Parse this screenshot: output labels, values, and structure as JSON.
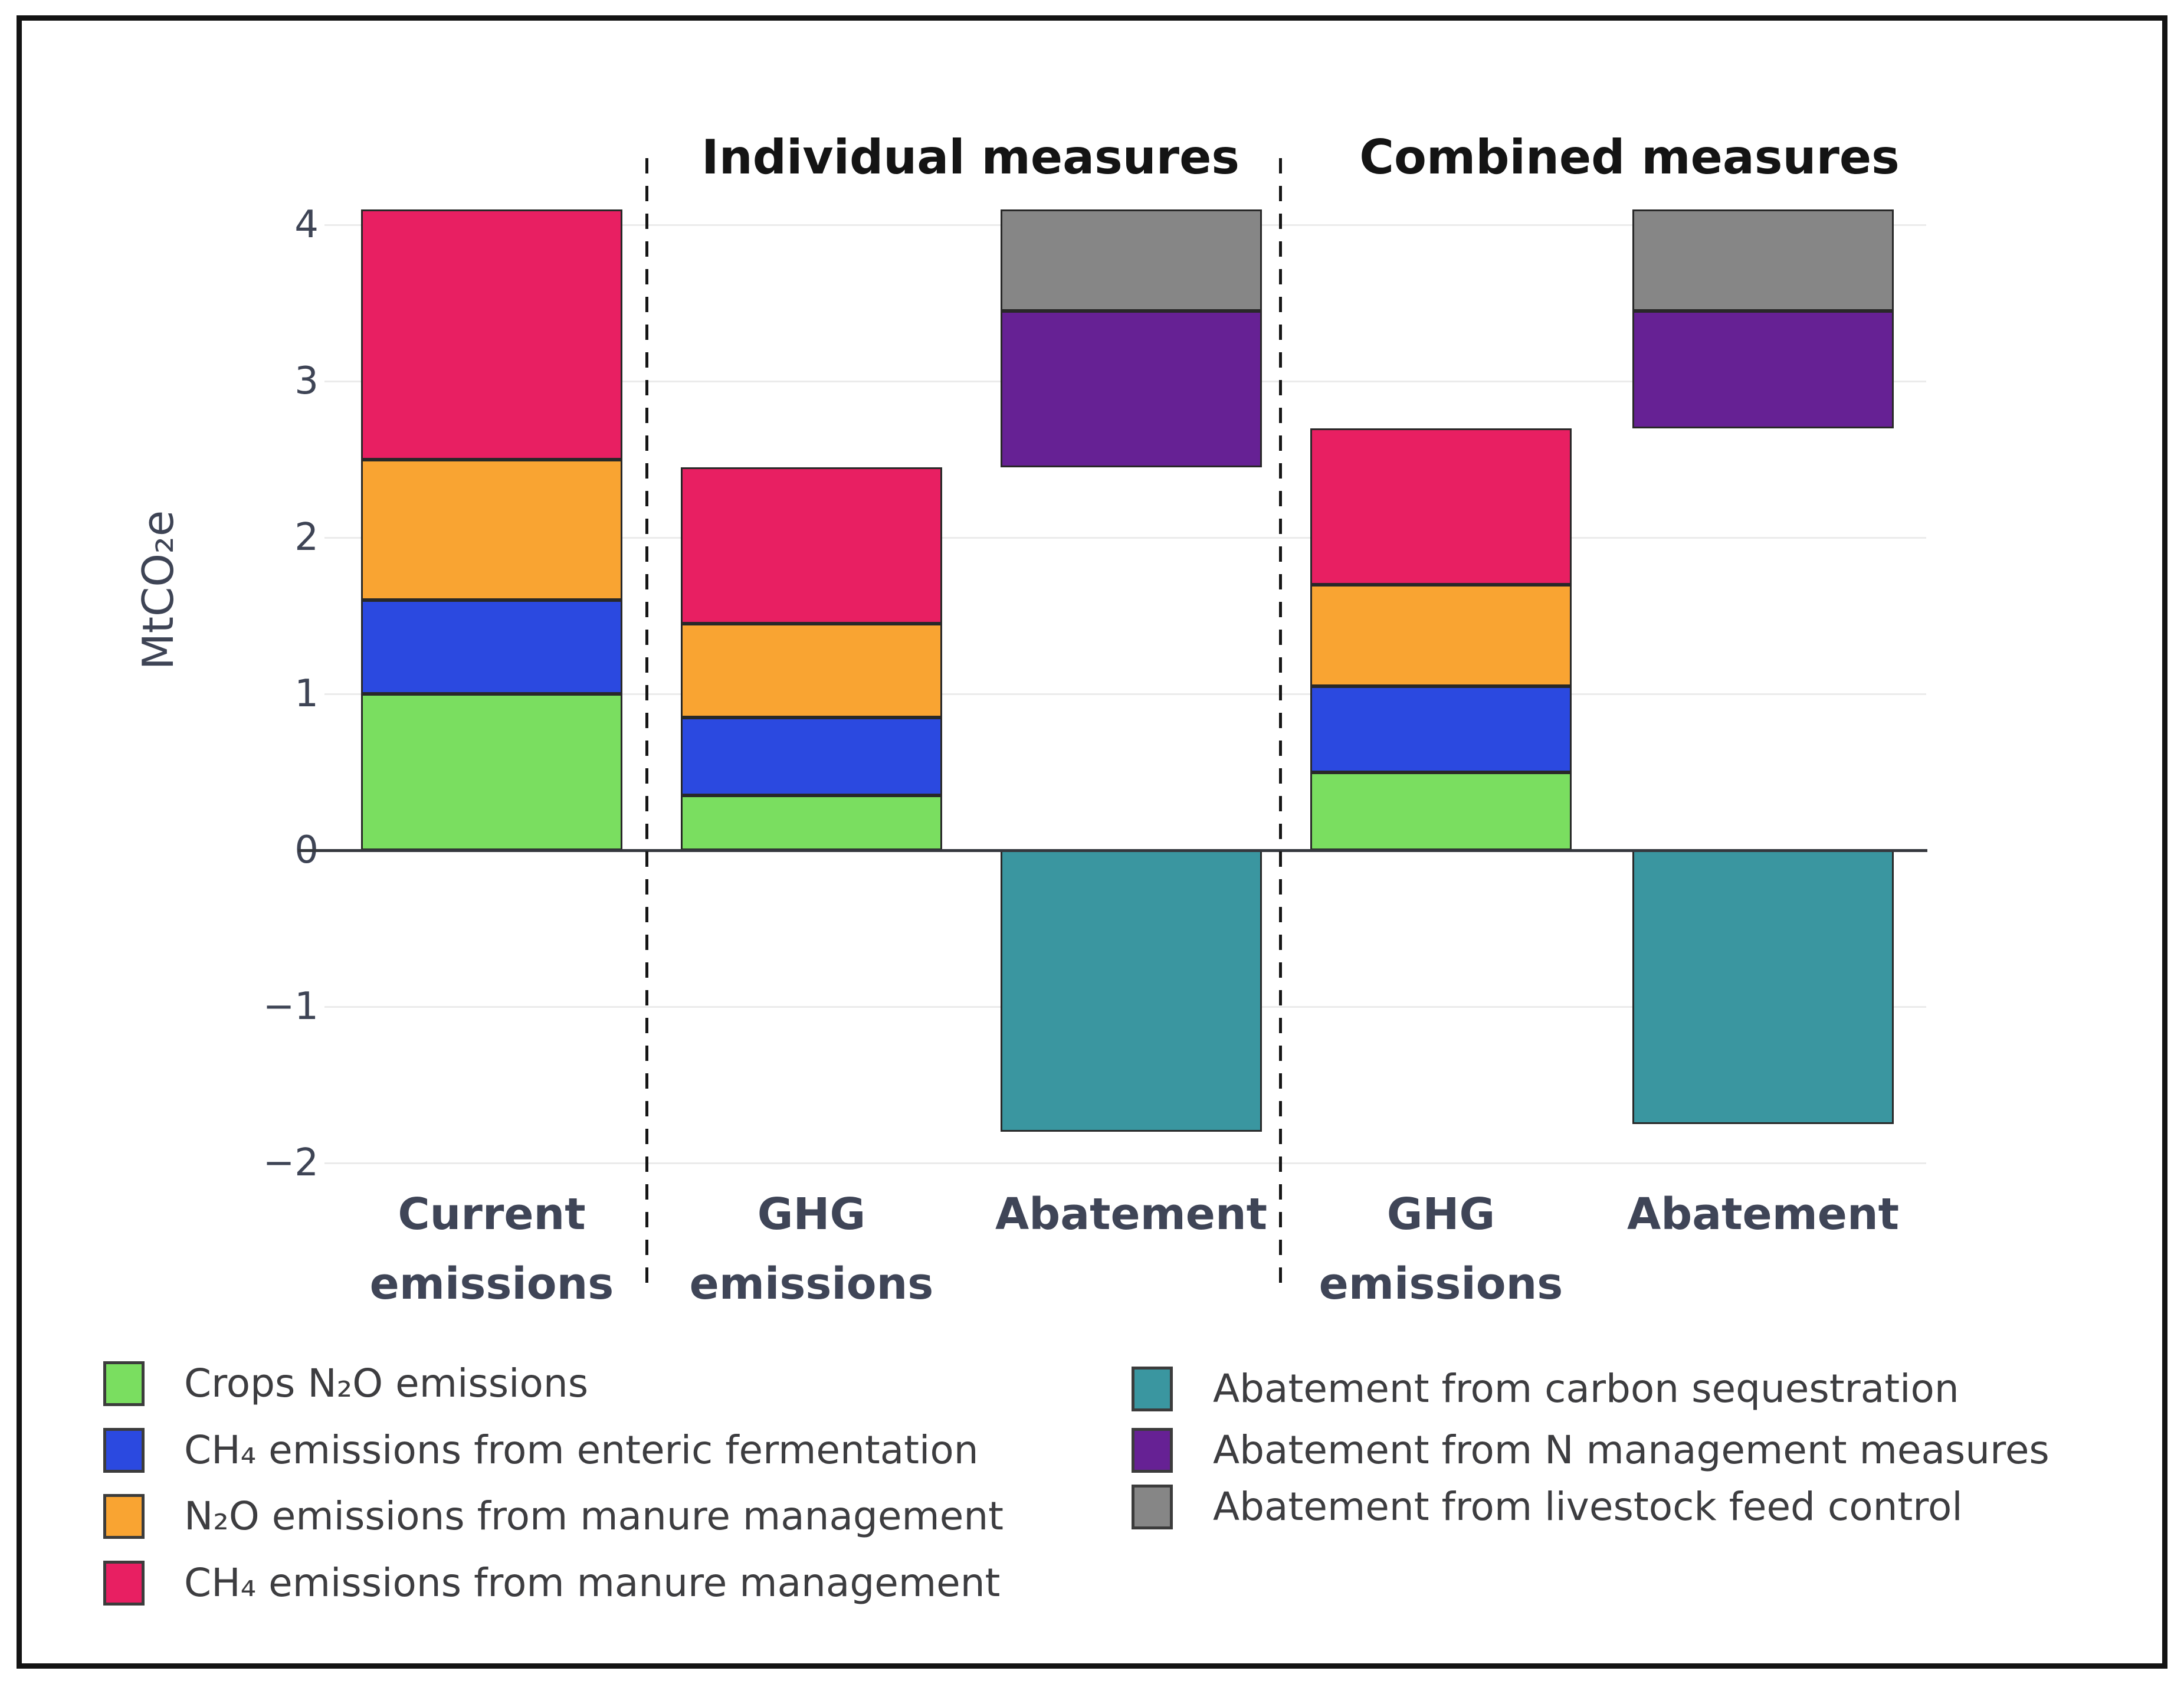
{
  "chart_data": {
    "type": "bar",
    "stacked": true,
    "waterfall": true,
    "title": "",
    "section_titles": [
      "Individual measures",
      "Combined measures"
    ],
    "ylabel": "MtCO₂e",
    "ylim": [
      -2.45,
      4.35
    ],
    "grid": true,
    "legend_position": "bottom",
    "yticks": [
      {
        "value": 4,
        "label": "4"
      },
      {
        "value": 3,
        "label": "3"
      },
      {
        "value": 2,
        "label": "2"
      },
      {
        "value": 1,
        "label": "1"
      },
      {
        "value": 0,
        "label": "0"
      },
      {
        "value": -1,
        "label": "−1"
      },
      {
        "value": -2,
        "label": "−2"
      }
    ],
    "series": {
      "crops_n2o": {
        "label": "Crops N₂O emissions",
        "color": "#7ade60"
      },
      "ch4_enteric": {
        "label": "CH₄ emissions from enteric fermentation",
        "color": "#2b49e0"
      },
      "n2o_manure": {
        "label": "N₂O emissions from manure management",
        "color": "#f9a432"
      },
      "ch4_manure": {
        "label": "CH₄ emissions from manure management",
        "color": "#e81f62"
      },
      "abate_carbon": {
        "label": "Abatement from carbon sequestration",
        "color": "#3a96a0"
      },
      "abate_n": {
        "label": "Abatement from N management measures",
        "color": "#662194"
      },
      "abate_feed": {
        "label": "Abatement from livestock feed control",
        "color": "#868686"
      }
    },
    "bars": [
      {
        "category_lines": [
          "Current",
          "emissions"
        ],
        "group": "current",
        "total": 4.1,
        "segments": [
          {
            "series": "crops_n2o",
            "from": 0,
            "to": 1.0
          },
          {
            "series": "ch4_enteric",
            "from": 1.0,
            "to": 1.6
          },
          {
            "series": "n2o_manure",
            "from": 1.6,
            "to": 2.5
          },
          {
            "series": "ch4_manure",
            "from": 2.5,
            "to": 4.1
          }
        ]
      },
      {
        "category_lines": [
          "GHG",
          "emissions"
        ],
        "group": "individual",
        "total": 2.45,
        "segments": [
          {
            "series": "crops_n2o",
            "from": 0,
            "to": 0.35
          },
          {
            "series": "ch4_enteric",
            "from": 0.35,
            "to": 0.85
          },
          {
            "series": "n2o_manure",
            "from": 0.85,
            "to": 1.45
          },
          {
            "series": "ch4_manure",
            "from": 1.45,
            "to": 2.45
          }
        ]
      },
      {
        "category_lines": [
          "Abatement"
        ],
        "group": "individual",
        "segments": [
          {
            "series": "abate_carbon",
            "from": 0,
            "to": -1.8
          },
          {
            "series": "abate_n",
            "from": 2.45,
            "to": 3.45
          },
          {
            "series": "abate_feed",
            "from": 3.45,
            "to": 4.1
          }
        ]
      },
      {
        "category_lines": [
          "GHG",
          "emissions"
        ],
        "group": "combined",
        "total": 2.7,
        "segments": [
          {
            "series": "crops_n2o",
            "from": 0,
            "to": 0.5
          },
          {
            "series": "ch4_enteric",
            "from": 0.5,
            "to": 1.05
          },
          {
            "series": "n2o_manure",
            "from": 1.05,
            "to": 1.7
          },
          {
            "series": "ch4_manure",
            "from": 1.7,
            "to": 2.7
          }
        ]
      },
      {
        "category_lines": [
          "Abatement"
        ],
        "group": "combined",
        "segments": [
          {
            "series": "abate_carbon",
            "from": 0,
            "to": -1.75
          },
          {
            "series": "abate_n",
            "from": 2.7,
            "to": 3.45
          },
          {
            "series": "abate_feed",
            "from": 3.45,
            "to": 4.1
          }
        ]
      }
    ],
    "legend": {
      "columns": [
        [
          "crops_n2o",
          "ch4_enteric",
          "n2o_manure",
          "ch4_manure"
        ],
        [
          "abate_carbon",
          "abate_n",
          "abate_feed"
        ]
      ]
    }
  }
}
